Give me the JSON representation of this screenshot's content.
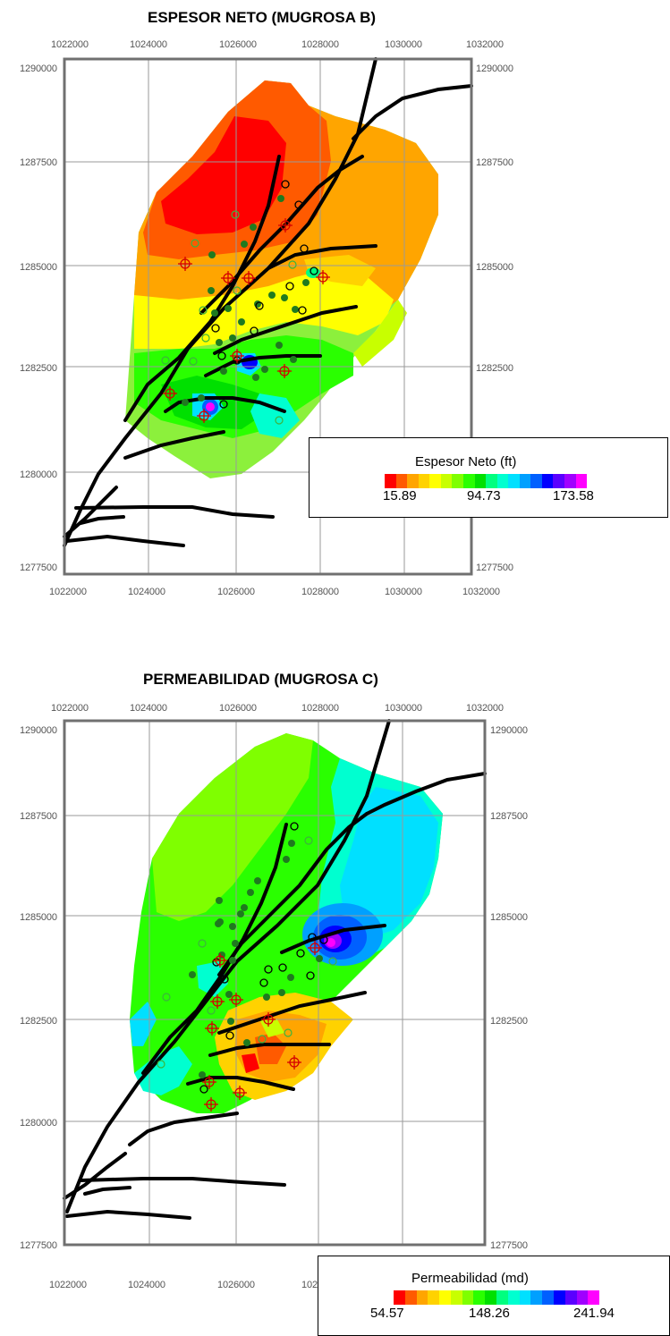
{
  "maps": [
    {
      "title": "ESPESOR NETO  (MUGROSA B)",
      "x_ticks": [
        "1022000",
        "1024000",
        "1026000",
        "1028000",
        "1030000",
        "1032000"
      ],
      "y_ticks": [
        "1290000",
        "1287500",
        "1285000",
        "1282500",
        "1280000",
        "1277500"
      ],
      "legend": {
        "title": "Espesor Neto (ft)",
        "min": "15.89",
        "mid": "94.73",
        "max": "173.58"
      }
    },
    {
      "title": "PERMEABILIDAD  (MUGROSA C)",
      "x_ticks": [
        "1022000",
        "1024000",
        "1026000",
        "1028000",
        "1030000",
        "1032000"
      ],
      "y_ticks": [
        "1290000",
        "1287500",
        "1285000",
        "1282500",
        "1280000",
        "1277500"
      ],
      "legend": {
        "title": "Permeabilidad (md)",
        "min": "54.57",
        "mid": "148.26",
        "max": "241.94"
      }
    }
  ],
  "colors": {
    "scale": [
      "#ff0000",
      "#ff5a00",
      "#ffa500",
      "#ffd200",
      "#ffff00",
      "#c8ff00",
      "#7fff00",
      "#2aff00",
      "#00e000",
      "#00ff7f",
      "#00ffd0",
      "#00e0ff",
      "#00a0ff",
      "#0060ff",
      "#0000ff",
      "#5a00ff",
      "#a000ff",
      "#ff00ff"
    ],
    "well_filled": "#1f7a1f",
    "well_open": "#000000",
    "injector": "#d40000",
    "fault": "#000000"
  }
}
